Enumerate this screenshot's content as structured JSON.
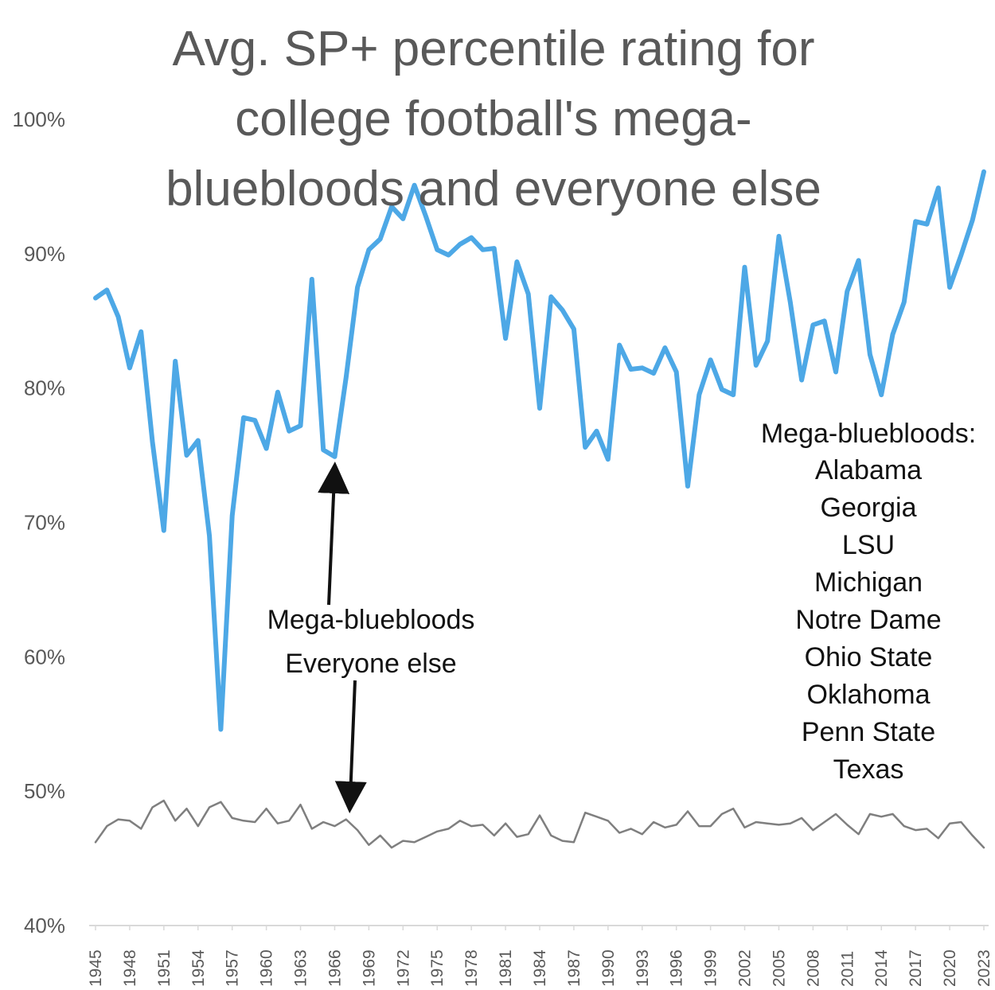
{
  "chart_data": {
    "type": "line",
    "title_lines": [
      "Avg. SP+ percentile rating for",
      "college football's mega-",
      "bluebloods and everyone else"
    ],
    "xlabel": "",
    "ylabel": "",
    "ylim": [
      0.4,
      1.0
    ],
    "yticks": [
      0.4,
      0.5,
      0.6,
      0.7,
      0.8,
      0.9,
      1.0
    ],
    "ytick_labels": [
      "40%",
      "50%",
      "60%",
      "70%",
      "80%",
      "90%",
      "100%"
    ],
    "xtick_years": [
      1945,
      1948,
      1951,
      1954,
      1957,
      1960,
      1963,
      1966,
      1969,
      1972,
      1975,
      1978,
      1981,
      1984,
      1987,
      1990,
      1993,
      1996,
      1999,
      2002,
      2005,
      2008,
      2011,
      2014,
      2017,
      2020,
      2023
    ],
    "x": [
      1945,
      1946,
      1947,
      1948,
      1949,
      1950,
      1951,
      1952,
      1953,
      1954,
      1955,
      1956,
      1957,
      1958,
      1959,
      1960,
      1961,
      1962,
      1963,
      1964,
      1965,
      1966,
      1967,
      1968,
      1969,
      1970,
      1971,
      1972,
      1973,
      1974,
      1975,
      1976,
      1977,
      1978,
      1979,
      1980,
      1981,
      1982,
      1983,
      1984,
      1985,
      1986,
      1987,
      1988,
      1989,
      1990,
      1991,
      1992,
      1993,
      1994,
      1995,
      1996,
      1997,
      1998,
      1999,
      2000,
      2001,
      2002,
      2003,
      2004,
      2005,
      2006,
      2007,
      2008,
      2009,
      2010,
      2011,
      2012,
      2013,
      2014,
      2015,
      2016,
      2017,
      2018,
      2019,
      2020,
      2021,
      2022,
      2023
    ],
    "series": [
      {
        "color": "#4da8e6",
        "values": [
          0.867,
          0.873,
          0.853,
          0.815,
          0.842,
          0.76,
          0.694,
          0.82,
          0.75,
          0.761,
          0.69,
          0.546,
          0.705,
          0.778,
          0.776,
          0.755,
          0.797,
          0.768,
          0.772,
          0.881,
          0.754,
          0.749,
          0.808,
          0.875,
          0.903,
          0.911,
          0.935,
          0.926,
          0.951,
          0.928,
          0.903,
          0.899,
          0.907,
          0.912,
          0.903,
          0.904,
          0.837,
          0.894,
          0.87,
          0.785,
          0.868,
          0.858,
          0.844,
          0.756,
          0.768,
          0.747,
          0.832,
          0.814,
          0.815,
          0.811,
          0.83,
          0.812,
          0.727,
          0.795,
          0.821,
          0.799,
          0.795,
          0.89,
          0.817,
          0.835,
          0.913,
          0.864,
          0.806,
          0.847,
          0.85,
          0.812,
          0.872,
          0.895,
          0.825,
          0.795,
          0.84,
          0.864,
          0.924,
          0.922,
          0.949,
          0.875,
          0.899,
          0.925,
          0.961
        ]
      },
      {
        "color": "#7f7f7f",
        "values": [
          0.462,
          0.474,
          0.479,
          0.478,
          0.472,
          0.488,
          0.493,
          0.478,
          0.487,
          0.474,
          0.488,
          0.492,
          0.48,
          0.478,
          0.477,
          0.487,
          0.476,
          0.478,
          0.49,
          0.472,
          0.477,
          0.474,
          0.479,
          0.471,
          0.46,
          0.467,
          0.458,
          0.463,
          0.462,
          0.466,
          0.47,
          0.472,
          0.478,
          0.474,
          0.475,
          0.467,
          0.476,
          0.466,
          0.468,
          0.482,
          0.467,
          0.463,
          0.462,
          0.484,
          0.481,
          0.478,
          0.469,
          0.472,
          0.468,
          0.477,
          0.473,
          0.475,
          0.485,
          0.474,
          0.474,
          0.483,
          0.487,
          0.473,
          0.477,
          0.476,
          0.475,
          0.476,
          0.48,
          0.471,
          0.477,
          0.483,
          0.475,
          0.468,
          0.483,
          0.481,
          0.483,
          0.474,
          0.471,
          0.472,
          0.465,
          0.476,
          0.477,
          0.467,
          0.458
        ]
      }
    ],
    "annotations": {
      "arrow_label_top": "Mega-bluebloods",
      "arrow_label_bottom": "Everyone else",
      "list_heading": "Mega-bluebloods:",
      "list_items": [
        "Alabama",
        "Georgia",
        "LSU",
        "Michigan",
        "Notre Dame",
        "Ohio State",
        "Oklahoma",
        "Penn State",
        "Texas"
      ]
    }
  }
}
